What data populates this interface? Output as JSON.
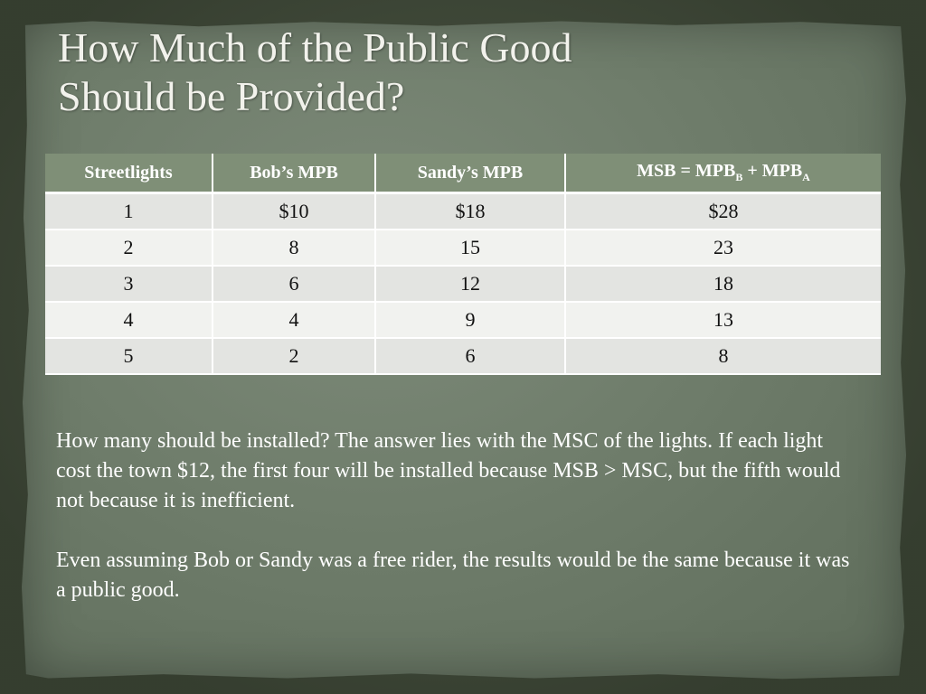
{
  "slide": {
    "title_line1": "How Much of the Public Good",
    "title_line2": "Should be Provided?"
  },
  "table": {
    "headers": {
      "col1": "Streetlights",
      "col2": "Bob’s MPB",
      "col3": "Sandy’s MPB",
      "col4_main": "MSB = MPB",
      "col4_sub1": "B",
      "col4_mid": " + MPB",
      "col4_sub2": "A"
    },
    "rows": [
      [
        "1",
        "$10",
        "$18",
        "$28"
      ],
      [
        "2",
        "8",
        "15",
        "23"
      ],
      [
        "3",
        "6",
        "12",
        "18"
      ],
      [
        "4",
        "4",
        "9",
        "13"
      ],
      [
        "5",
        "2",
        "6",
        "8"
      ]
    ]
  },
  "body": {
    "paragraph1": "How many should be installed?  The answer lies with the MSC of the lights.  If each light cost the town $12, the first four will be installed because MSB > MSC, but the fifth would not because it is inefficient.",
    "paragraph2": "Even assuming Bob or Sandy was a free rider, the results would be the same because it was a public good."
  },
  "colors": {
    "header_bg": "#7f8f77",
    "row_odd": "#e3e4e1",
    "row_even": "#f1f2ef",
    "background": "#6f7d6b"
  }
}
